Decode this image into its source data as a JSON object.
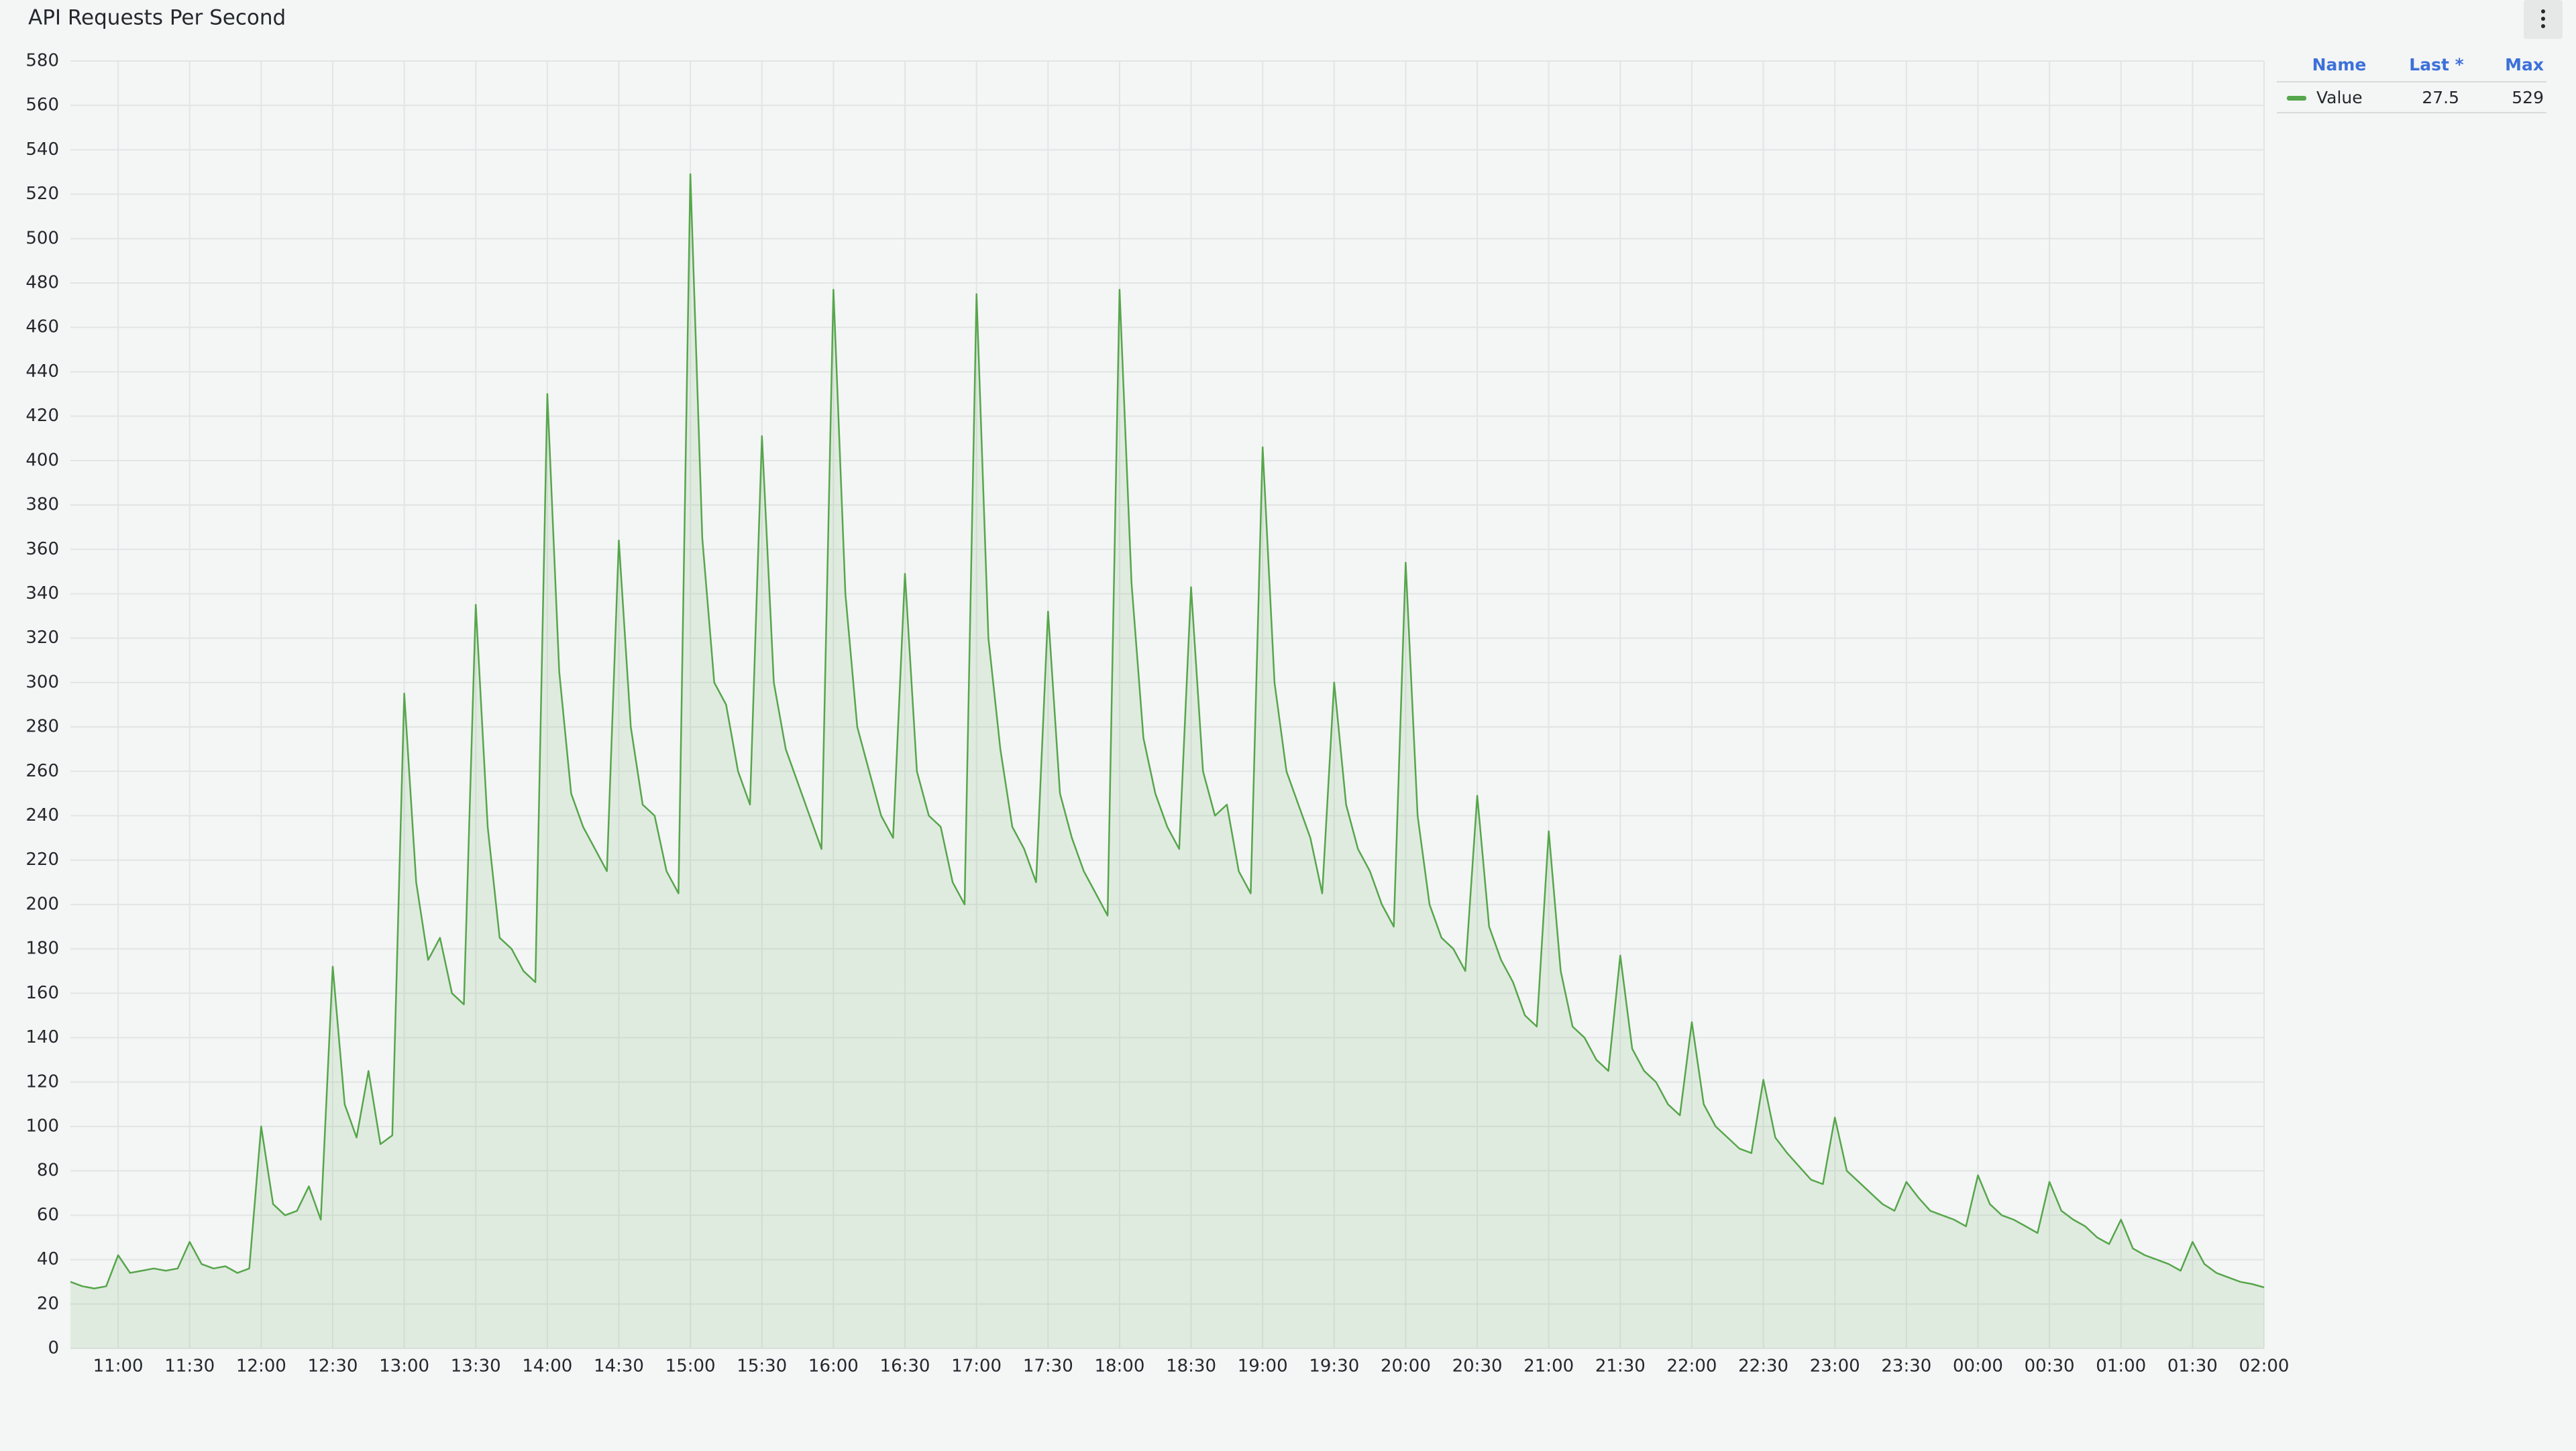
{
  "chart_data": {
    "type": "line",
    "title": "API Requests Per Second",
    "x": [
      "10:40",
      "10:45",
      "10:50",
      "10:55",
      "11:00",
      "11:05",
      "11:10",
      "11:15",
      "11:20",
      "11:25",
      "11:30",
      "11:35",
      "11:40",
      "11:45",
      "11:50",
      "11:55",
      "12:00",
      "12:05",
      "12:10",
      "12:15",
      "12:20",
      "12:25",
      "12:30",
      "12:35",
      "12:40",
      "12:45",
      "12:50",
      "12:55",
      "13:00",
      "13:05",
      "13:10",
      "13:15",
      "13:20",
      "13:25",
      "13:30",
      "13:35",
      "13:40",
      "13:45",
      "13:50",
      "13:55",
      "14:00",
      "14:05",
      "14:10",
      "14:15",
      "14:20",
      "14:25",
      "14:30",
      "14:35",
      "14:40",
      "14:45",
      "14:50",
      "14:55",
      "15:00",
      "15:05",
      "15:10",
      "15:15",
      "15:20",
      "15:25",
      "15:30",
      "15:35",
      "15:40",
      "15:45",
      "15:50",
      "15:55",
      "16:00",
      "16:05",
      "16:10",
      "16:15",
      "16:20",
      "16:25",
      "16:30",
      "16:35",
      "16:40",
      "16:45",
      "16:50",
      "16:55",
      "17:00",
      "17:05",
      "17:10",
      "17:15",
      "17:20",
      "17:25",
      "17:30",
      "17:35",
      "17:40",
      "17:45",
      "17:50",
      "17:55",
      "18:00",
      "18:05",
      "18:10",
      "18:15",
      "18:20",
      "18:25",
      "18:30",
      "18:35",
      "18:40",
      "18:45",
      "18:50",
      "18:55",
      "19:00",
      "19:05",
      "19:10",
      "19:15",
      "19:20",
      "19:25",
      "19:30",
      "19:35",
      "19:40",
      "19:45",
      "19:50",
      "19:55",
      "20:00",
      "20:05",
      "20:10",
      "20:15",
      "20:20",
      "20:25",
      "20:30",
      "20:35",
      "20:40",
      "20:45",
      "20:50",
      "20:55",
      "21:00",
      "21:05",
      "21:10",
      "21:15",
      "21:20",
      "21:25",
      "21:30",
      "21:35",
      "21:40",
      "21:45",
      "21:50",
      "21:55",
      "22:00",
      "22:05",
      "22:10",
      "22:15",
      "22:20",
      "22:25",
      "22:30",
      "22:35",
      "22:40",
      "22:45",
      "22:50",
      "22:55",
      "23:00",
      "23:05",
      "23:10",
      "23:15",
      "23:20",
      "23:25",
      "23:30",
      "23:35",
      "23:40",
      "23:45",
      "23:50",
      "23:55",
      "00:00",
      "00:05",
      "00:10",
      "00:15",
      "00:20",
      "00:25",
      "00:30",
      "00:35",
      "00:40",
      "00:45",
      "00:50",
      "00:55",
      "01:00",
      "01:05",
      "01:10",
      "01:15",
      "01:20",
      "01:25",
      "01:30",
      "01:35",
      "01:40",
      "01:45",
      "01:50",
      "01:55",
      "02:00"
    ],
    "series": [
      {
        "name": "Value",
        "color": "#56a64b",
        "last": 27.5,
        "max": 529,
        "values": [
          30,
          28,
          27,
          28,
          42,
          34,
          35,
          36,
          35,
          36,
          48,
          38,
          36,
          37,
          34,
          36,
          100,
          65,
          60,
          62,
          73,
          58,
          172,
          110,
          95,
          125,
          92,
          96,
          295,
          210,
          175,
          185,
          160,
          155,
          335,
          235,
          185,
          180,
          170,
          165,
          430,
          305,
          250,
          235,
          225,
          215,
          364,
          280,
          245,
          240,
          215,
          205,
          529,
          365,
          300,
          290,
          260,
          245,
          411,
          300,
          270,
          255,
          240,
          225,
          477,
          340,
          280,
          260,
          240,
          230,
          349,
          260,
          240,
          235,
          210,
          200,
          475,
          320,
          270,
          235,
          225,
          210,
          332,
          250,
          230,
          215,
          205,
          195,
          477,
          345,
          275,
          250,
          235,
          225,
          343,
          260,
          240,
          245,
          215,
          205,
          406,
          300,
          260,
          245,
          230,
          205,
          300,
          245,
          225,
          215,
          200,
          190,
          354,
          240,
          200,
          185,
          180,
          170,
          249,
          190,
          175,
          165,
          150,
          145,
          233,
          170,
          145,
          140,
          130,
          125,
          177,
          135,
          125,
          120,
          110,
          105,
          147,
          110,
          100,
          95,
          90,
          88,
          121,
          95,
          88,
          82,
          76,
          74,
          104,
          80,
          75,
          70,
          65,
          62,
          75,
          68,
          62,
          60,
          58,
          55,
          78,
          65,
          60,
          58,
          55,
          52,
          75,
          62,
          58,
          55,
          50,
          47,
          58,
          45,
          42,
          40,
          38,
          35,
          48,
          38,
          34,
          32,
          30,
          29,
          27.5
        ]
      }
    ],
    "ylim": [
      0,
      580
    ],
    "yticks": [
      0,
      20,
      40,
      60,
      80,
      100,
      120,
      140,
      160,
      180,
      200,
      220,
      240,
      260,
      280,
      300,
      320,
      340,
      360,
      380,
      400,
      420,
      440,
      460,
      480,
      500,
      520,
      540,
      560,
      580
    ],
    "xticks": [
      "11:00",
      "11:30",
      "12:00",
      "12:30",
      "13:00",
      "13:30",
      "14:00",
      "14:30",
      "15:00",
      "15:30",
      "16:00",
      "16:30",
      "17:00",
      "17:30",
      "18:00",
      "18:30",
      "19:00",
      "19:30",
      "20:00",
      "20:30",
      "21:00",
      "21:30",
      "22:00",
      "22:30",
      "23:00",
      "23:30",
      "00:00",
      "00:30",
      "01:00",
      "01:30",
      "02:00"
    ],
    "grid": true,
    "legend": {
      "headers": [
        "Name",
        "Last *",
        "Max"
      ]
    }
  }
}
